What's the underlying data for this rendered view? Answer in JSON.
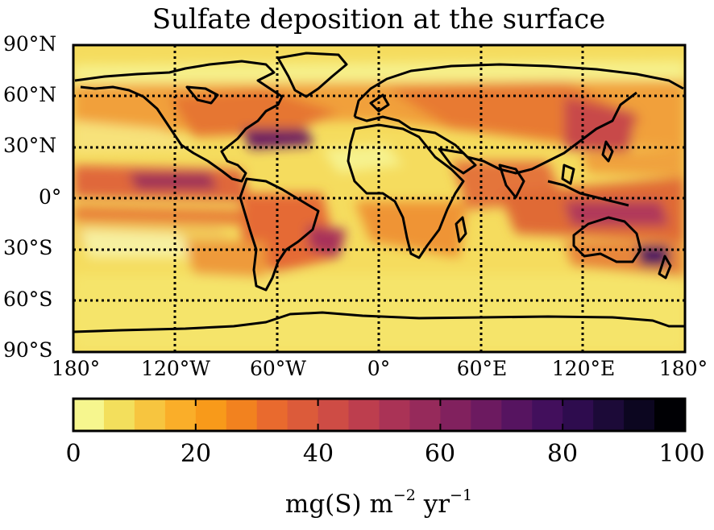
{
  "title": "Sulfate deposition at the surface",
  "map": {
    "projection": "cylindrical",
    "lon_range": [
      -180,
      180
    ],
    "lat_range": [
      -90,
      90
    ],
    "gridlines": "dotted, 60° longitude / 30° latitude",
    "lat_labels": [
      "90°N",
      "60°N",
      "30°N",
      "0°",
      "30°S",
      "60°S",
      "90°S"
    ],
    "lon_labels": [
      "180°",
      "120°W",
      "60°W",
      "0°",
      "60°E",
      "120°E",
      "180°"
    ],
    "coastlines": true,
    "colormap": "inferno_r"
  },
  "colorbar": {
    "min": 0,
    "max": 100,
    "step": 5,
    "tick_labels": [
      "0",
      "20",
      "40",
      "60",
      "80",
      "100"
    ],
    "label_main": "mg(S) m",
    "label_exp1": "−2",
    "label_mid": " yr",
    "label_exp2": "−1"
  },
  "colors": {
    "levels": [
      "#f6f68e",
      "#f3df5c",
      "#f7c53f",
      "#faae29",
      "#f89a1a",
      "#f2821f",
      "#e96a2e",
      "#dc5b3a",
      "#ce4c45",
      "#bd3e4e",
      "#aa3356",
      "#962a5b",
      "#81215e",
      "#6c1a60",
      "#561460",
      "#420f5c",
      "#2e0c4e",
      "#1c0a38",
      "#0c0620",
      "#000004"
    ]
  }
}
